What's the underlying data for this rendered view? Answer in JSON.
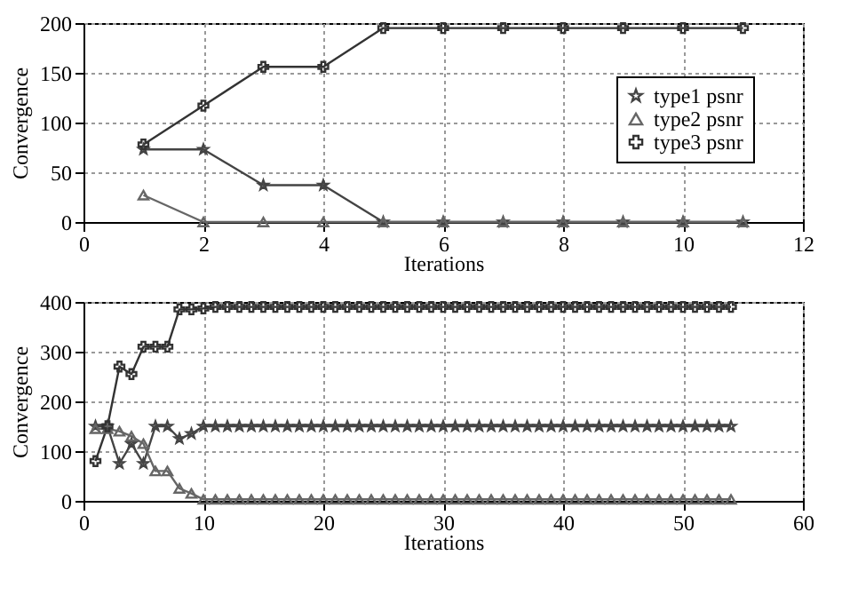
{
  "chart_data": [
    {
      "type": "line",
      "xlabel": "Iterations",
      "ylabel": "Convergence",
      "xlim": [
        0,
        12
      ],
      "xticks": [
        0,
        2,
        4,
        6,
        8,
        10,
        12
      ],
      "ylim": [
        0,
        200
      ],
      "yticks": [
        0,
        50,
        100,
        150,
        200
      ],
      "grid": true,
      "legend": "right",
      "x": [
        1,
        2,
        3,
        4,
        5,
        6,
        7,
        8,
        9,
        10,
        11
      ],
      "series": [
        {
          "name": "type1 psnr",
          "color": "#444444",
          "marker": "star",
          "values": [
            73,
            73,
            37,
            37,
            0,
            0,
            0,
            0,
            0,
            0,
            0
          ]
        },
        {
          "name": "type2 psnr",
          "color": "#666666",
          "marker": "triangle",
          "values": [
            27,
            0,
            0,
            0,
            0,
            0,
            0,
            0,
            0,
            0,
            0
          ]
        },
        {
          "name": "type3 psnr",
          "color": "#333333",
          "marker": "cross",
          "values": [
            78,
            117,
            156,
            156,
            195,
            195,
            195,
            195,
            195,
            195,
            195
          ]
        }
      ]
    },
    {
      "type": "line",
      "xlabel": "Iterations",
      "ylabel": "Convergence",
      "xlim": [
        0,
        60
      ],
      "xticks": [
        0,
        10,
        20,
        30,
        40,
        50,
        60
      ],
      "ylim": [
        0,
        400
      ],
      "yticks": [
        0,
        100,
        200,
        300,
        400
      ],
      "grid": true,
      "legend": "top right",
      "x": [
        1,
        2,
        3,
        4,
        5,
        6,
        7,
        8,
        9,
        10,
        11,
        12,
        13,
        14,
        15,
        16,
        17,
        18,
        19,
        20,
        21,
        22,
        23,
        24,
        25,
        26,
        27,
        28,
        29,
        30,
        31,
        32,
        33,
        34,
        35,
        36,
        37,
        38,
        39,
        40,
        41,
        42,
        43,
        44,
        45,
        46,
        47,
        48,
        49,
        50,
        51,
        52,
        53,
        54
      ],
      "series": [
        {
          "name": "type1 psnr",
          "color": "#444444",
          "marker": "star",
          "values": [
            150,
            150,
            75,
            115,
            75,
            150,
            150,
            125,
            135,
            150,
            150,
            150,
            150,
            150,
            150,
            150,
            150,
            150,
            150,
            150,
            150,
            150,
            150,
            150,
            150,
            150,
            150,
            150,
            150,
            150,
            150,
            150,
            150,
            150,
            150,
            150,
            150,
            150,
            150,
            150,
            150,
            150,
            150,
            150,
            150,
            150,
            150,
            150,
            150,
            150,
            150,
            150,
            150,
            150
          ]
        },
        {
          "name": "type2 psnr",
          "color": "#666666",
          "marker": "triangle",
          "values": [
            145,
            145,
            140,
            130,
            115,
            60,
            60,
            25,
            15,
            3,
            3,
            3,
            3,
            3,
            3,
            3,
            3,
            3,
            3,
            3,
            3,
            3,
            3,
            3,
            3,
            3,
            3,
            3,
            3,
            3,
            3,
            3,
            3,
            3,
            3,
            3,
            3,
            3,
            3,
            3,
            3,
            3,
            3,
            3,
            3,
            3,
            3,
            3,
            3,
            3,
            3,
            3,
            3,
            3
          ]
        },
        {
          "name": "type3 psnr",
          "color": "#333333",
          "marker": "cross",
          "values": [
            80,
            150,
            270,
            255,
            310,
            310,
            310,
            385,
            385,
            387,
            390,
            390,
            390,
            390,
            390,
            390,
            390,
            390,
            390,
            390,
            390,
            390,
            390,
            390,
            390,
            390,
            390,
            390,
            390,
            390,
            390,
            390,
            390,
            390,
            390,
            390,
            390,
            390,
            390,
            390,
            390,
            390,
            390,
            390,
            390,
            390,
            390,
            390,
            390,
            390,
            390,
            390,
            390,
            390
          ]
        }
      ]
    }
  ]
}
